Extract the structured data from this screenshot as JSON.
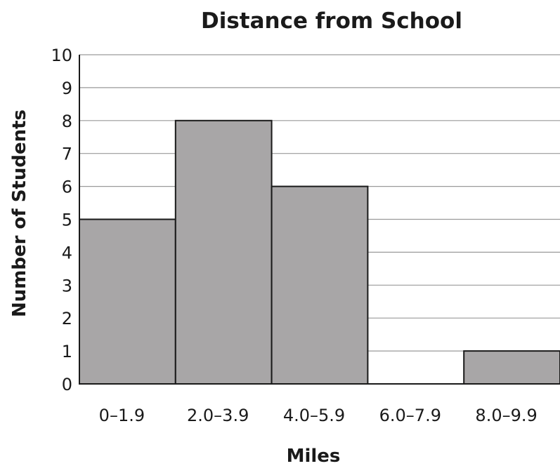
{
  "chart_data": {
    "type": "bar",
    "title": "Distance from School",
    "xlabel": "Miles",
    "ylabel": "Number of Students",
    "categories": [
      "0–1.9",
      "2.0–3.9",
      "4.0–5.9",
      "6.0–7.9",
      "8.0–9.9"
    ],
    "values": [
      5,
      8,
      6,
      0,
      1
    ],
    "ylim": [
      0,
      10
    ],
    "yticks": [
      "0",
      "1",
      "2",
      "3",
      "4",
      "5",
      "6",
      "7",
      "8",
      "9",
      "10"
    ],
    "grid": true,
    "bar_color": "#a8a6a7"
  }
}
